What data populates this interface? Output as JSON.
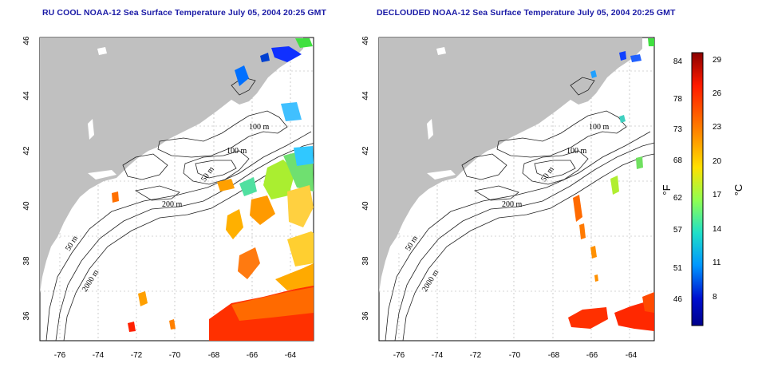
{
  "maps": [
    {
      "id": "left",
      "title": "RU COOL NOAA-12 Sea Surface Temperature July 05, 2004 20:25 GMT",
      "contour_labels": [
        "100 m",
        "100 m",
        "50 m",
        "200 m",
        "50 m",
        "2000 m"
      ]
    },
    {
      "id": "right",
      "title": "DECLOUDED NOAA-12 Sea Surface Temperature July 05, 2004 20:25 GMT",
      "contour_labels": [
        "100 m",
        "100 m",
        "50 m",
        "200 m",
        "50 m",
        "2000 m"
      ]
    }
  ],
  "axes": {
    "lon_ticks": [
      "-76",
      "-74",
      "-72",
      "-70",
      "-68",
      "-66",
      "-64"
    ],
    "lat_ticks": [
      "36",
      "38",
      "40",
      "42",
      "44",
      "46"
    ],
    "lon_range": [
      -77,
      -63
    ],
    "lat_range": [
      35,
      46
    ],
    "grid": "dotted"
  },
  "colorbar": {
    "fahrenheit_label": "°F",
    "celsius_label": "°C",
    "fahrenheit_ticks": [
      "84",
      "78",
      "73",
      "68",
      "62",
      "57",
      "51",
      "46"
    ],
    "celsius_ticks": [
      "29",
      "26",
      "23",
      "20",
      "17",
      "14",
      "11",
      "8"
    ],
    "colors": [
      "#8b0000",
      "#ff2000",
      "#ff8c00",
      "#ffe000",
      "#9aff40",
      "#20e0c0",
      "#0090ff",
      "#0000b0",
      "#00008b"
    ]
  }
}
